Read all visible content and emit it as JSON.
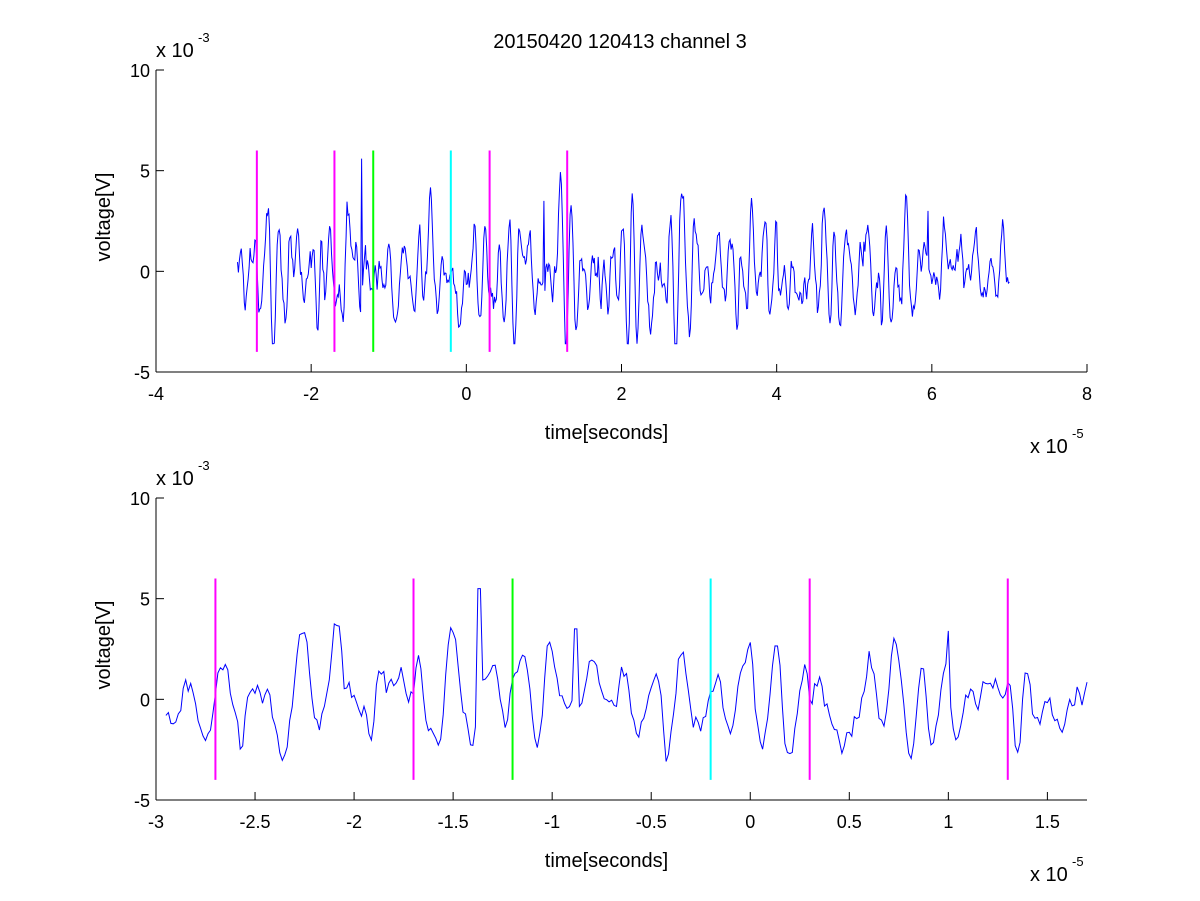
{
  "title": "20150420 120413 channel 3",
  "colors": {
    "signal": "#0000ff",
    "magenta": "#ff00ff",
    "green": "#00ff00",
    "cyan": "#00ffff"
  },
  "chart_data": [
    {
      "type": "line",
      "xlabel": "time[seconds]",
      "ylabel": "voltage[V]",
      "x_multiplier": "x 10",
      "x_exponent": "-5",
      "y_multiplier": "x 10",
      "y_exponent": "-3",
      "xlim": [
        -4,
        8
      ],
      "ylim": [
        -5,
        10
      ],
      "x_ticks": [
        -4,
        -2,
        0,
        2,
        4,
        6,
        8
      ],
      "x_tick_labels": [
        "-4",
        "-2",
        "0",
        "2",
        "4",
        "6",
        "8"
      ],
      "y_ticks": [
        -5,
        0,
        5,
        10
      ],
      "y_tick_labels": [
        "-5",
        "0",
        "5",
        "10"
      ],
      "signal": {
        "x_start": -2.95,
        "x_end": 7.0,
        "seed": 7,
        "spikes": [
          {
            "x": -1.35,
            "y": 5.6
          },
          {
            "x": 1.0,
            "y": 3.5
          },
          {
            "x": 2.8,
            "y": 3.7
          },
          {
            "x": 5.95,
            "y": 3.0
          }
        ]
      },
      "markers": [
        {
          "x": -2.7,
          "color": "magenta",
          "y_min": -4,
          "y_max": 6
        },
        {
          "x": -1.7,
          "color": "magenta",
          "y_min": -4,
          "y_max": 6
        },
        {
          "x": -1.2,
          "color": "green",
          "y_min": -4,
          "y_max": 6
        },
        {
          "x": -0.2,
          "color": "cyan",
          "y_min": -4,
          "y_max": 6
        },
        {
          "x": 0.3,
          "color": "magenta",
          "y_min": -4,
          "y_max": 6
        },
        {
          "x": 1.3,
          "color": "magenta",
          "y_min": -4,
          "y_max": 6
        }
      ]
    },
    {
      "type": "line",
      "xlabel": "time[seconds]",
      "ylabel": "voltage[V]",
      "x_multiplier": "x 10",
      "x_exponent": "-5",
      "y_multiplier": "x 10",
      "y_exponent": "-3",
      "xlim": [
        -3,
        1.7
      ],
      "ylim": [
        -5,
        10
      ],
      "x_ticks": [
        -3,
        -2.5,
        -2,
        -1.5,
        -1,
        -0.5,
        0,
        0.5,
        1,
        1.5
      ],
      "x_tick_labels": [
        "-3",
        "-2.5",
        "-2",
        "-1.5",
        "-1",
        "-0.5",
        "0",
        "0.5",
        "1",
        "1.5"
      ],
      "y_ticks": [
        -5,
        0,
        5,
        10
      ],
      "y_tick_labels": [
        "-5",
        "0",
        "5",
        "10"
      ],
      "signal": {
        "x_start": -2.95,
        "x_end": 1.7,
        "seed": 11,
        "spikes": [
          {
            "x": -1.37,
            "y": 5.5
          },
          {
            "x": -0.88,
            "y": 3.5
          },
          {
            "x": 1.0,
            "y": 3.4
          }
        ]
      },
      "markers": [
        {
          "x": -2.7,
          "color": "magenta",
          "y_min": -4,
          "y_max": 6
        },
        {
          "x": -1.7,
          "color": "magenta",
          "y_min": -4,
          "y_max": 6
        },
        {
          "x": -1.2,
          "color": "green",
          "y_min": -4,
          "y_max": 6
        },
        {
          "x": -0.2,
          "color": "cyan",
          "y_min": -4,
          "y_max": 6
        },
        {
          "x": 0.3,
          "color": "magenta",
          "y_min": -4,
          "y_max": 6
        },
        {
          "x": 1.3,
          "color": "magenta",
          "y_min": -4,
          "y_max": 6
        }
      ]
    }
  ]
}
